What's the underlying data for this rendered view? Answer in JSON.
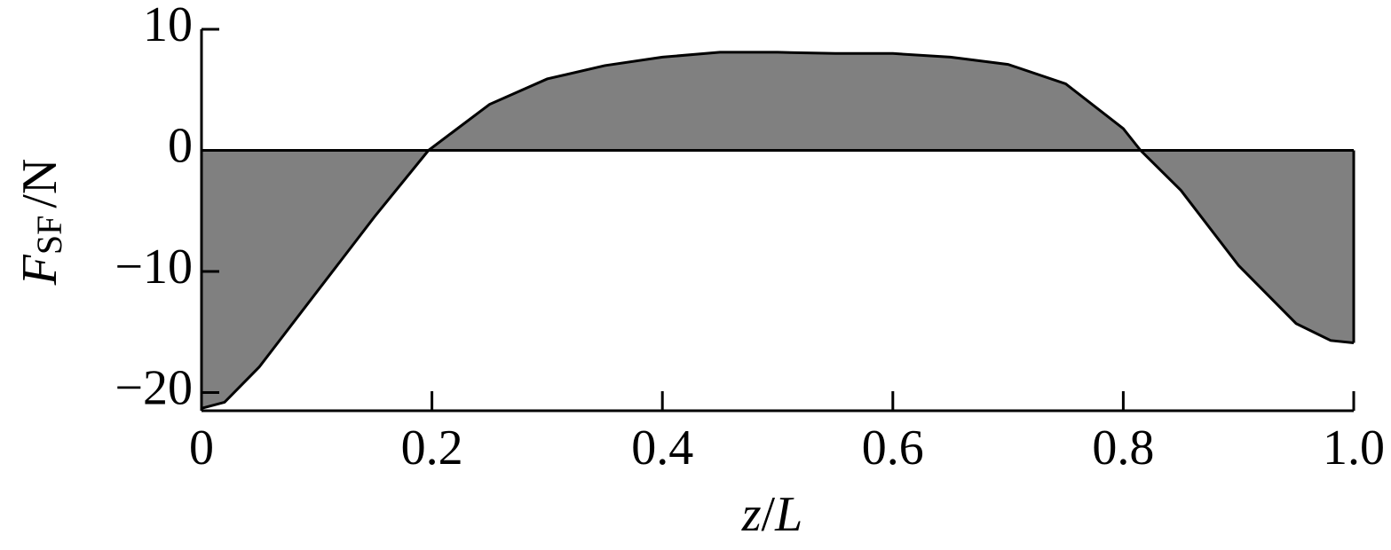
{
  "chart_data": {
    "type": "area",
    "x_label": {
      "var": "z",
      "slash": "/",
      "ref": "L"
    },
    "y_label": {
      "symbol": "F",
      "subscript": "SF",
      "unit": "/N"
    },
    "x": [
      0,
      0.02,
      0.05,
      0.1,
      0.15,
      0.197,
      0.25,
      0.3,
      0.35,
      0.4,
      0.45,
      0.5,
      0.55,
      0.6,
      0.65,
      0.7,
      0.75,
      0.8,
      0.815,
      0.85,
      0.9,
      0.95,
      0.98,
      1.0
    ],
    "values": [
      -21.3,
      -20.8,
      -17.9,
      -11.7,
      -5.5,
      0,
      3.8,
      5.9,
      7.0,
      7.7,
      8.1,
      8.1,
      8.0,
      8.0,
      7.7,
      7.1,
      5.5,
      1.8,
      0,
      -3.3,
      -9.5,
      -14.3,
      -15.7,
      -15.9
    ],
    "color": "#808080",
    "xlim": [
      0,
      1
    ],
    "ylim": [
      -21.5,
      10
    ],
    "xticks": [
      0,
      0.2,
      0.4,
      0.6,
      0.8,
      {
        "value": 1,
        "label": "1.0"
      }
    ],
    "yticks": [
      10,
      0,
      {
        "value": -10,
        "label": "−10"
      },
      {
        "value": -20,
        "label": "−20"
      }
    ]
  }
}
